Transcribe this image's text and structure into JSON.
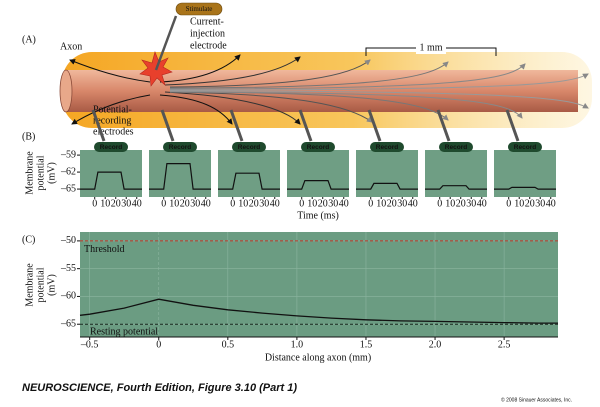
{
  "panel_a": {
    "panel_label": "(A)",
    "axon": "Axon",
    "stimulate": "Stimulate",
    "injection_electrode": [
      "Current-",
      "injection",
      "electrode"
    ],
    "scale_bar": "1 mm",
    "recording_electrodes": [
      "Potential-",
      "recording",
      "electrodes"
    ]
  },
  "chart_data": [
    {
      "type": "line",
      "panel_label": "(B)",
      "record_label": "Record",
      "y_label": [
        "Membrane",
        "potential",
        "(mV)"
      ],
      "x_label": "Time (ms)",
      "x": [
        -14,
        0,
        3,
        25,
        28,
        45
      ],
      "series": [
        {
          "color": "#111111",
          "values": [
            -65,
            -65,
            -62,
            -62,
            -65,
            -65
          ]
        },
        {
          "color": "#111111",
          "values": [
            -65,
            -65,
            -60.5,
            -60.5,
            -65,
            -65
          ]
        },
        {
          "color": "#111111",
          "values": [
            -65,
            -65,
            -62.2,
            -62.2,
            -65,
            -65
          ]
        },
        {
          "color": "#111111",
          "values": [
            -65,
            -65,
            -63.5,
            -63.5,
            -65,
            -65
          ]
        },
        {
          "color": "#111111",
          "values": [
            -65,
            -65,
            -64,
            -64,
            -65,
            -65
          ]
        },
        {
          "color": "#111111",
          "values": [
            -65,
            -65,
            -64.4,
            -64.4,
            -65,
            -65
          ]
        },
        {
          "color": "#111111",
          "values": [
            -65,
            -65,
            -64.7,
            -64.7,
            -65,
            -65
          ]
        }
      ],
      "xlim": [
        -14,
        45
      ],
      "xticks": [
        0,
        10,
        20,
        30,
        40
      ],
      "ylim": [
        -66.4,
        -58.1
      ],
      "yticks": [
        {
          "value": -59,
          "label": "–59"
        },
        {
          "value": -62,
          "label": "–62"
        },
        {
          "value": -65,
          "label": "–65"
        }
      ]
    },
    {
      "type": "line",
      "panel_label": "(C)",
      "y_label": [
        "Membrane",
        "potential",
        "(mV)"
      ],
      "x_label": "Distance along axon (mm)",
      "x": [
        -0.57,
        -0.5,
        -0.25,
        0,
        0.25,
        0.5,
        0.75,
        1,
        1.25,
        1.5,
        1.75,
        2,
        2.25,
        2.5,
        2.75,
        2.89
      ],
      "series": [
        {
          "color": "#111111",
          "values": [
            -63.4,
            -63.2,
            -62.1,
            -60.5,
            -61.6,
            -62.4,
            -63.0,
            -63.5,
            -63.9,
            -64.2,
            -64.4,
            -64.5,
            -64.6,
            -64.7,
            -64.8,
            -64.8
          ]
        }
      ],
      "xlim": [
        -0.57,
        2.89
      ],
      "xticks": [
        {
          "value": -0.5,
          "label": "–0.5"
        },
        0,
        0.5,
        {
          "value": 1,
          "label": "1.0"
        },
        1.5,
        {
          "value": 2,
          "label": "2.0"
        },
        2.5
      ],
      "ylim": [
        -67.3,
        -48.4
      ],
      "yticks": [
        {
          "value": -50,
          "label": "–50"
        },
        {
          "value": -55,
          "label": "–55"
        },
        {
          "value": -60,
          "label": "–60"
        },
        {
          "value": -65,
          "label": "–65"
        }
      ],
      "threshold": {
        "label": "Threshold",
        "value": -50,
        "color": "#c0392b"
      },
      "resting": {
        "label": "Resting potential",
        "value": -65,
        "color": "#1a2a20"
      },
      "grid": true
    }
  ],
  "footer": {
    "caption": "NEUROSCIENCE, Fourth Edition, Figure 3.10 (Part 1)",
    "copyright": "© 2008 Sinauer Associates, Inc."
  }
}
